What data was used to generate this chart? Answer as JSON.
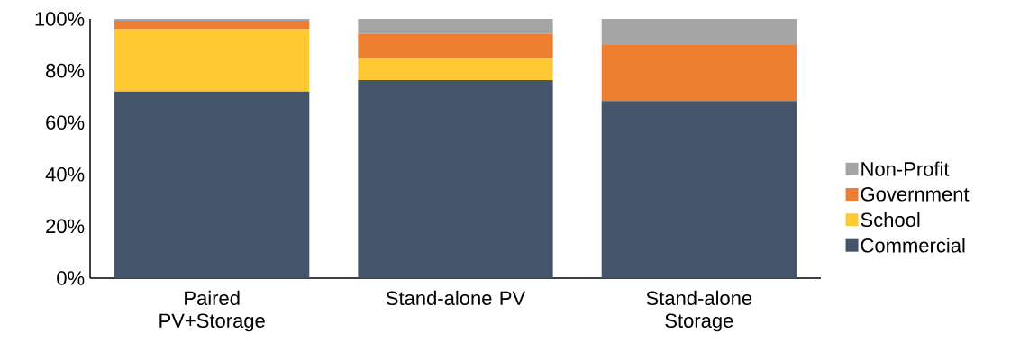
{
  "chart_data": {
    "type": "bar",
    "stacked": true,
    "categories": [
      "Paired PV+Storage",
      "Stand-alone PV",
      "Stand-alone Storage"
    ],
    "series": [
      {
        "name": "Commercial",
        "color": "#44546a",
        "values": [
          72,
          76.4,
          68.3
        ]
      },
      {
        "name": "School",
        "color": "#ffc933",
        "values": [
          24,
          8.4,
          0
        ]
      },
      {
        "name": "Government",
        "color": "#ed7d31",
        "values": [
          3.3,
          9.4,
          21.9
        ]
      },
      {
        "name": "Non-Profit",
        "color": "#a5a5a5",
        "values": [
          0.7,
          5.8,
          9.8
        ]
      }
    ],
    "ylim": [
      0,
      100
    ],
    "yticks": [
      {
        "value": 0,
        "label": "0%"
      },
      {
        "value": 20,
        "label": "20%"
      },
      {
        "value": 40,
        "label": "40%"
      },
      {
        "value": 60,
        "label": "60%"
      },
      {
        "value": 80,
        "label": "80%"
      },
      {
        "value": 100,
        "label": "100%"
      }
    ],
    "grid": false,
    "legend": "right"
  }
}
